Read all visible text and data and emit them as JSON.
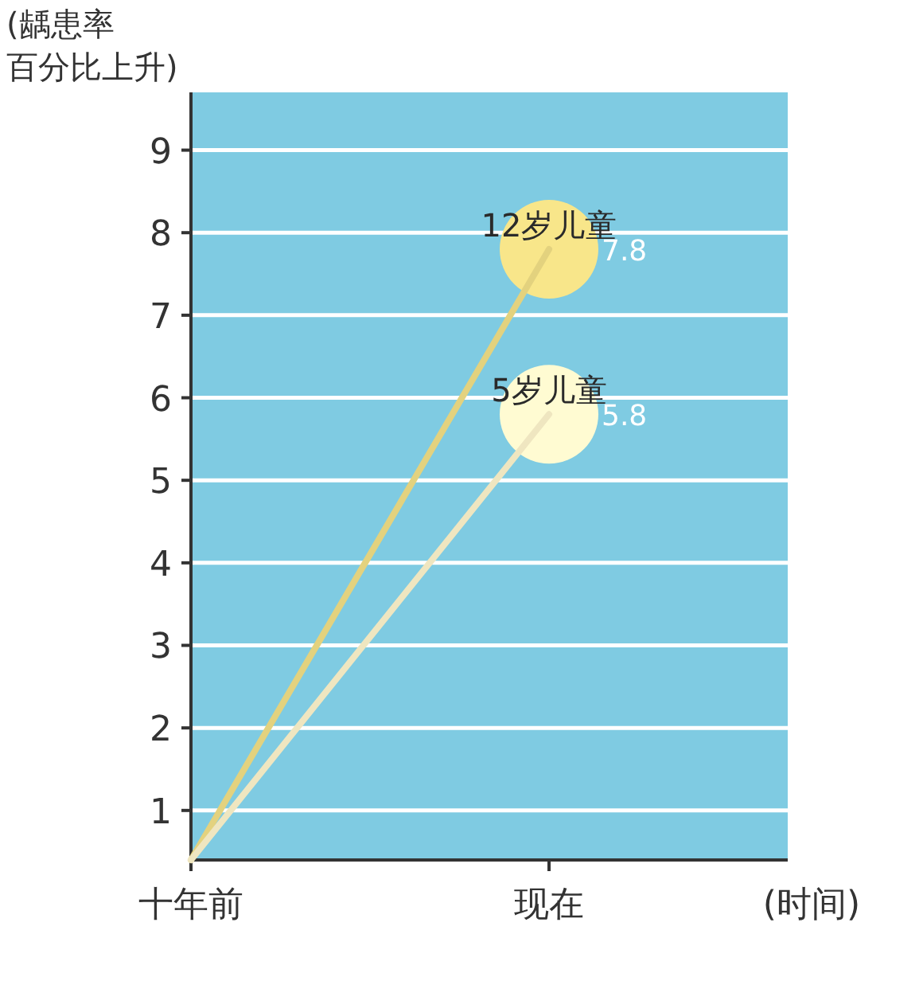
{
  "chart_data": {
    "type": "line",
    "ylabel": "(龋患率百分比上升)",
    "xlabel": "(时间)",
    "categories": [
      "十年前",
      "现在"
    ],
    "series": [
      {
        "name": "12岁儿童",
        "color": "#e3d27e",
        "values": [
          0.4,
          7.8
        ],
        "value_labels": [
          null,
          "7.8"
        ]
      },
      {
        "name": "5岁儿童",
        "color": "#efe6c0",
        "values": [
          0.4,
          5.8
        ],
        "value_labels": [
          null,
          "5.8"
        ]
      }
    ],
    "ylim": [
      0.4,
      9.7
    ],
    "yticks": [
      1,
      2,
      3,
      4,
      5,
      6,
      7,
      8,
      9
    ],
    "grid": "y",
    "legend": false,
    "line_style": "solid"
  }
}
